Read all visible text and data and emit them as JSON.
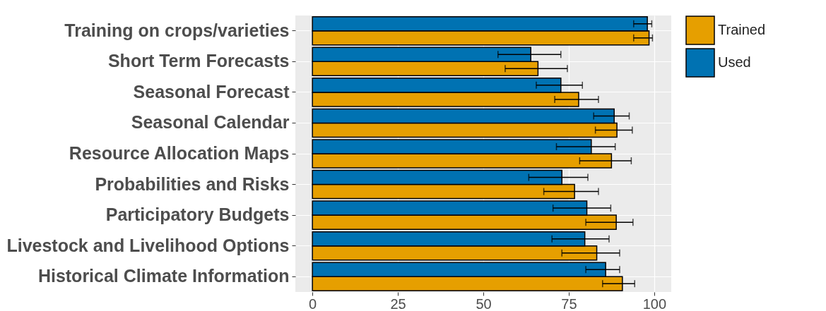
{
  "chart_data": {
    "type": "bar",
    "orientation": "horizontal",
    "categories": [
      "Training on crops/varieties",
      "Short Term Forecasts",
      "Seasonal Forecast",
      "Seasonal Calendar",
      "Resource Allocation Maps",
      "Probabilities and Risks",
      "Participatory Budgets",
      "Livestock and Livelihood Options",
      "Historical Climate Information"
    ],
    "series": [
      {
        "name": "Trained",
        "color": "#e69f00",
        "values": [
          98.5,
          66.0,
          77.9,
          89.1,
          87.5,
          76.7,
          88.9,
          83.2,
          90.7
        ],
        "errors": [
          [
            94.0,
            99.5
          ],
          [
            56.4,
            74.6
          ],
          [
            70.9,
            83.7
          ],
          [
            82.8,
            93.6
          ],
          [
            78.2,
            93.3
          ],
          [
            67.7,
            83.7
          ],
          [
            80.0,
            93.8
          ],
          [
            73.0,
            89.9
          ],
          [
            84.9,
            94.3
          ]
        ]
      },
      {
        "name": "Used",
        "color": "#0072b2",
        "values": [
          98.0,
          63.9,
          72.7,
          88.3,
          81.6,
          73.0,
          80.3,
          79.7,
          85.8
        ],
        "errors": [
          [
            94.0,
            99.3
          ],
          [
            54.3,
            72.7
          ],
          [
            65.5,
            79.0
          ],
          [
            82.3,
            92.7
          ],
          [
            71.4,
            88.6
          ],
          [
            63.3,
            80.6
          ],
          [
            70.4,
            87.3
          ],
          [
            70.1,
            86.8
          ],
          [
            80.0,
            89.9
          ]
        ]
      }
    ],
    "xlim": [
      -5,
      105
    ],
    "xticks": [
      0,
      25,
      50,
      75,
      100
    ],
    "grid": true,
    "legend": "right"
  }
}
